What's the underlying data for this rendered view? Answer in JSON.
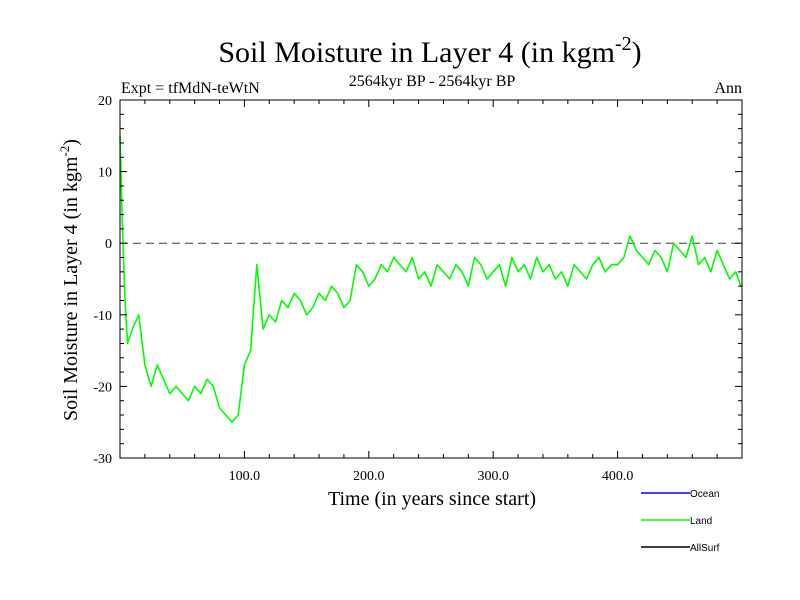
{
  "chart_data": {
    "type": "line",
    "title": "Soil Moisture in Layer 4 (in kgm",
    "title_sup": "-2",
    "title_close": ")",
    "subtitle_left": "Expt = tfMdN-teWtN",
    "subtitle_center": "2564kyr BP - 2564kyr BP",
    "subtitle_right": "Ann",
    "xlabel": "Time (in years since start)",
    "ylabel": "Soil Moisture in Layer 4 (in kgm",
    "ylabel_sup": "-2",
    "ylabel_close": ")",
    "xlim": [
      0,
      500
    ],
    "ylim": [
      -30,
      20
    ],
    "x_ticks": [
      100,
      200,
      300,
      400
    ],
    "x_tick_labels": [
      "100.0",
      "200.0",
      "300.0",
      "400.0"
    ],
    "y_ticks": [
      -30,
      -20,
      -10,
      0,
      10,
      20
    ],
    "y_tick_labels": [
      "-30",
      "-20",
      "-10",
      "0",
      "10",
      "20"
    ],
    "reference_line": 0,
    "legend": [
      {
        "name": "Ocean",
        "color": "#0000ff"
      },
      {
        "name": "Land",
        "color": "#00ff00"
      },
      {
        "name": "AllSurf",
        "color": "#000000"
      }
    ],
    "series": [
      {
        "name": "Land",
        "color": "#00ff00",
        "x": [
          0,
          2,
          4,
          6,
          10,
          15,
          20,
          25,
          30,
          35,
          40,
          45,
          50,
          55,
          60,
          65,
          70,
          75,
          80,
          85,
          90,
          95,
          100,
          105,
          110,
          115,
          120,
          125,
          130,
          135,
          140,
          145,
          150,
          155,
          160,
          165,
          170,
          175,
          180,
          185,
          190,
          195,
          200,
          205,
          210,
          215,
          220,
          225,
          230,
          235,
          240,
          245,
          250,
          255,
          260,
          265,
          270,
          275,
          280,
          285,
          290,
          295,
          300,
          305,
          310,
          315,
          320,
          325,
          330,
          335,
          340,
          345,
          350,
          355,
          360,
          365,
          370,
          375,
          380,
          385,
          390,
          395,
          400,
          405,
          410,
          415,
          420,
          425,
          430,
          435,
          440,
          445,
          450,
          455,
          460,
          465,
          470,
          475,
          480,
          485,
          490,
          495,
          499
        ],
        "values": [
          15,
          2,
          -8,
          -14,
          -12,
          -10,
          -17,
          -20,
          -17,
          -19,
          -21,
          -20,
          -21,
          -22,
          -20,
          -21,
          -19,
          -20,
          -23,
          -24,
          -25,
          -24,
          -17,
          -15,
          -3,
          -12,
          -10,
          -11,
          -8,
          -9,
          -7,
          -8,
          -10,
          -9,
          -7,
          -8,
          -6,
          -7,
          -9,
          -8,
          -3,
          -4,
          -6,
          -5,
          -3,
          -4,
          -2,
          -3,
          -4,
          -2,
          -5,
          -4,
          -6,
          -3,
          -4,
          -5,
          -3,
          -4,
          -6,
          -2,
          -3,
          -5,
          -4,
          -3,
          -6,
          -2,
          -4,
          -3,
          -5,
          -2,
          -4,
          -3,
          -5,
          -4,
          -6,
          -3,
          -4,
          -5,
          -3,
          -2,
          -4,
          -3,
          -3,
          -2,
          1,
          -1,
          -2,
          -3,
          -1,
          -2,
          -4,
          0,
          -1,
          -2,
          1,
          -3,
          -2,
          -4,
          -1,
          -3,
          -5,
          -4,
          -6
        ]
      }
    ]
  }
}
